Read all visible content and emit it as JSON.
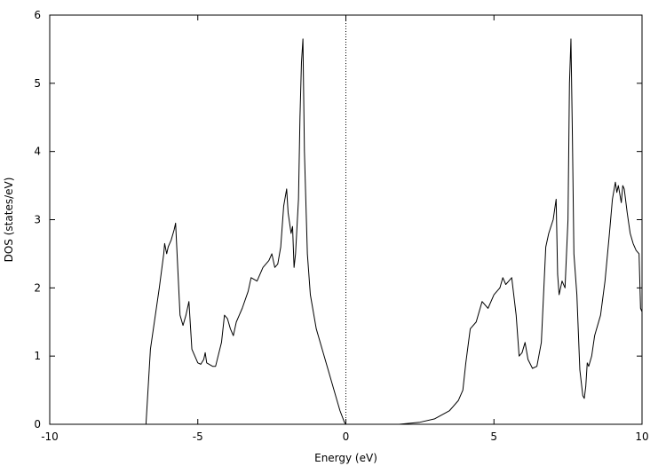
{
  "chart_data": {
    "type": "line",
    "xlabel": "Energy (eV)",
    "ylabel": "DOS (states/eV)",
    "xlim": [
      -10,
      10
    ],
    "ylim": [
      0,
      6
    ],
    "xticks": [
      -10,
      -5,
      0,
      5,
      10
    ],
    "yticks": [
      0,
      1,
      2,
      3,
      4,
      5,
      6
    ],
    "grid": false,
    "legend": "none",
    "reference_line": {
      "x": 0,
      "style": "dotted"
    },
    "colors": {
      "line": "#000000",
      "axes": "#000000",
      "background": "#ffffff"
    },
    "series": [
      {
        "x": [
          -10,
          -6.75,
          -6.6,
          -6.3,
          -6.15,
          -6.12,
          -6.05,
          -6.0,
          -5.9,
          -5.8,
          -5.75,
          -5.6,
          -5.5,
          -5.4,
          -5.3,
          -5.2,
          -5.0,
          -4.9,
          -4.8,
          -4.75,
          -4.7,
          -4.5,
          -4.4,
          -4.2,
          -4.1,
          -4.0,
          -3.9,
          -3.8,
          -3.7,
          -3.6,
          -3.5,
          -3.3,
          -3.2,
          -3.0,
          -2.8,
          -2.6,
          -2.5,
          -2.4,
          -2.3,
          -2.2,
          -2.1,
          -2.0,
          -1.95,
          -1.9,
          -1.85,
          -1.8,
          -1.75,
          -1.7,
          -1.6,
          -1.55,
          -1.5,
          -1.45,
          -1.4,
          -1.3,
          -1.2,
          -1.0,
          -0.8,
          -0.6,
          -0.4,
          -0.2,
          -0.05,
          0.0
        ],
        "y": [
          0,
          0,
          1.1,
          2.0,
          2.5,
          2.65,
          2.5,
          2.6,
          2.7,
          2.85,
          2.95,
          1.6,
          1.45,
          1.6,
          1.8,
          1.1,
          0.9,
          0.88,
          0.95,
          1.05,
          0.9,
          0.85,
          0.85,
          1.2,
          1.6,
          1.55,
          1.4,
          1.3,
          1.5,
          1.6,
          1.7,
          1.95,
          2.15,
          2.1,
          2.3,
          2.4,
          2.5,
          2.3,
          2.35,
          2.6,
          3.2,
          3.45,
          3.1,
          2.95,
          2.8,
          2.9,
          2.3,
          2.5,
          3.3,
          4.5,
          5.3,
          5.65,
          4.0,
          2.5,
          1.9,
          1.4,
          1.1,
          0.8,
          0.5,
          0.2,
          0.03,
          0
        ]
      },
      {
        "x": [
          1.8,
          2.5,
          3.0,
          3.5,
          3.8,
          3.95,
          4.05,
          4.2,
          4.4,
          4.6,
          4.8,
          5.0,
          5.2,
          5.3,
          5.4,
          5.5,
          5.6,
          5.75,
          5.85,
          5.95,
          6.05,
          6.15,
          6.3,
          6.45,
          6.6,
          6.75,
          6.85,
          7.0,
          7.1,
          7.15,
          7.2,
          7.3,
          7.4,
          7.5,
          7.55,
          7.6,
          7.65,
          7.7,
          7.8,
          7.9,
          8.0,
          8.05,
          8.1,
          8.15,
          8.2,
          8.3,
          8.4,
          8.6,
          8.75,
          8.9,
          9.0,
          9.1,
          9.15,
          9.2,
          9.3,
          9.35,
          9.4,
          9.5,
          9.6,
          9.7,
          9.8,
          9.9,
          9.95,
          10.0
        ],
        "y": [
          0,
          0.03,
          0.08,
          0.2,
          0.35,
          0.5,
          0.9,
          1.4,
          1.5,
          1.8,
          1.7,
          1.9,
          2.0,
          2.15,
          2.05,
          2.1,
          2.15,
          1.6,
          1.0,
          1.05,
          1.2,
          0.95,
          0.82,
          0.85,
          1.2,
          2.6,
          2.8,
          3.0,
          3.3,
          2.2,
          1.9,
          2.1,
          2.0,
          3.0,
          5.0,
          5.65,
          4.2,
          2.5,
          1.9,
          0.8,
          0.42,
          0.38,
          0.55,
          0.9,
          0.85,
          1.0,
          1.3,
          1.6,
          2.1,
          2.8,
          3.3,
          3.55,
          3.4,
          3.5,
          3.25,
          3.5,
          3.45,
          3.1,
          2.8,
          2.65,
          2.55,
          2.5,
          1.7,
          1.65
        ]
      }
    ]
  }
}
